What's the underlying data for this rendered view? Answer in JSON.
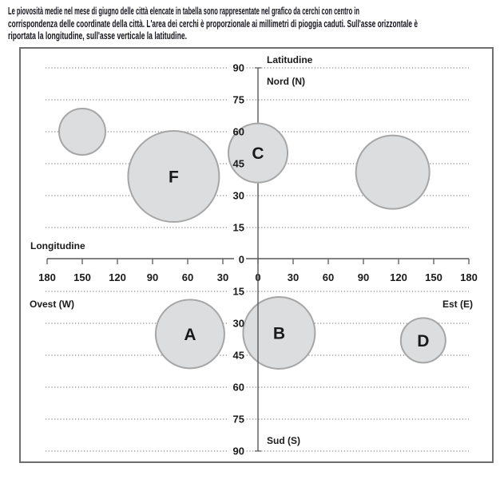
{
  "header": {
    "lines": [
      "Le piovosità medie nel mese di giugno delle città elencate in tabella sono rappresentate nel grafico da cerchi con centro in",
      "corrispondenza delle coordinate della città. L'area dei cerchi è proporzionale ai millimetri di pioggia caduti. Sull'asse orizzontale è",
      "riportata la longitudine, sull'asse verticale la latitudine."
    ]
  },
  "chart_data": {
    "type": "scatter",
    "subtype": "bubble",
    "x_axis": {
      "label": "Longitudine",
      "west_label": "Ovest (W)",
      "east_label": "Est (E)",
      "min": -180,
      "max": 180,
      "tick_step": 30,
      "tick_label_style": "absolute-value"
    },
    "y_axis": {
      "label": "Latitudine",
      "north_label": "Nord (N)",
      "south_label": "Sud (S)",
      "min": -90,
      "max": 90,
      "tick_step": 15,
      "tick_label_style": "absolute-value"
    },
    "grid": "horizontal-dotted",
    "legend": "none",
    "bubbles": [
      {
        "label": "",
        "lon": -150,
        "lat": 60,
        "radius_px": 29
      },
      {
        "label": "F",
        "lon": -72,
        "lat": 39,
        "radius_px": 57
      },
      {
        "label": "C",
        "lon": 0,
        "lat": 50,
        "radius_px": 37
      },
      {
        "label": "",
        "lon": 115,
        "lat": 41,
        "radius_px": 46
      },
      {
        "label": "A",
        "lon": -58,
        "lat": -35,
        "radius_px": 43
      },
      {
        "label": "B",
        "lon": 18,
        "lat": -34.5,
        "radius_px": 45
      },
      {
        "label": "D",
        "lon": 141,
        "lat": -38,
        "radius_px": 28
      }
    ],
    "colors": {
      "bubble_fill": "#dcddde",
      "bubble_stroke": "#a6a6a6",
      "axis": "#595959",
      "grid": "#8f8f8f",
      "text": "#1a1a1a",
      "border": "#6e6e6e"
    }
  }
}
